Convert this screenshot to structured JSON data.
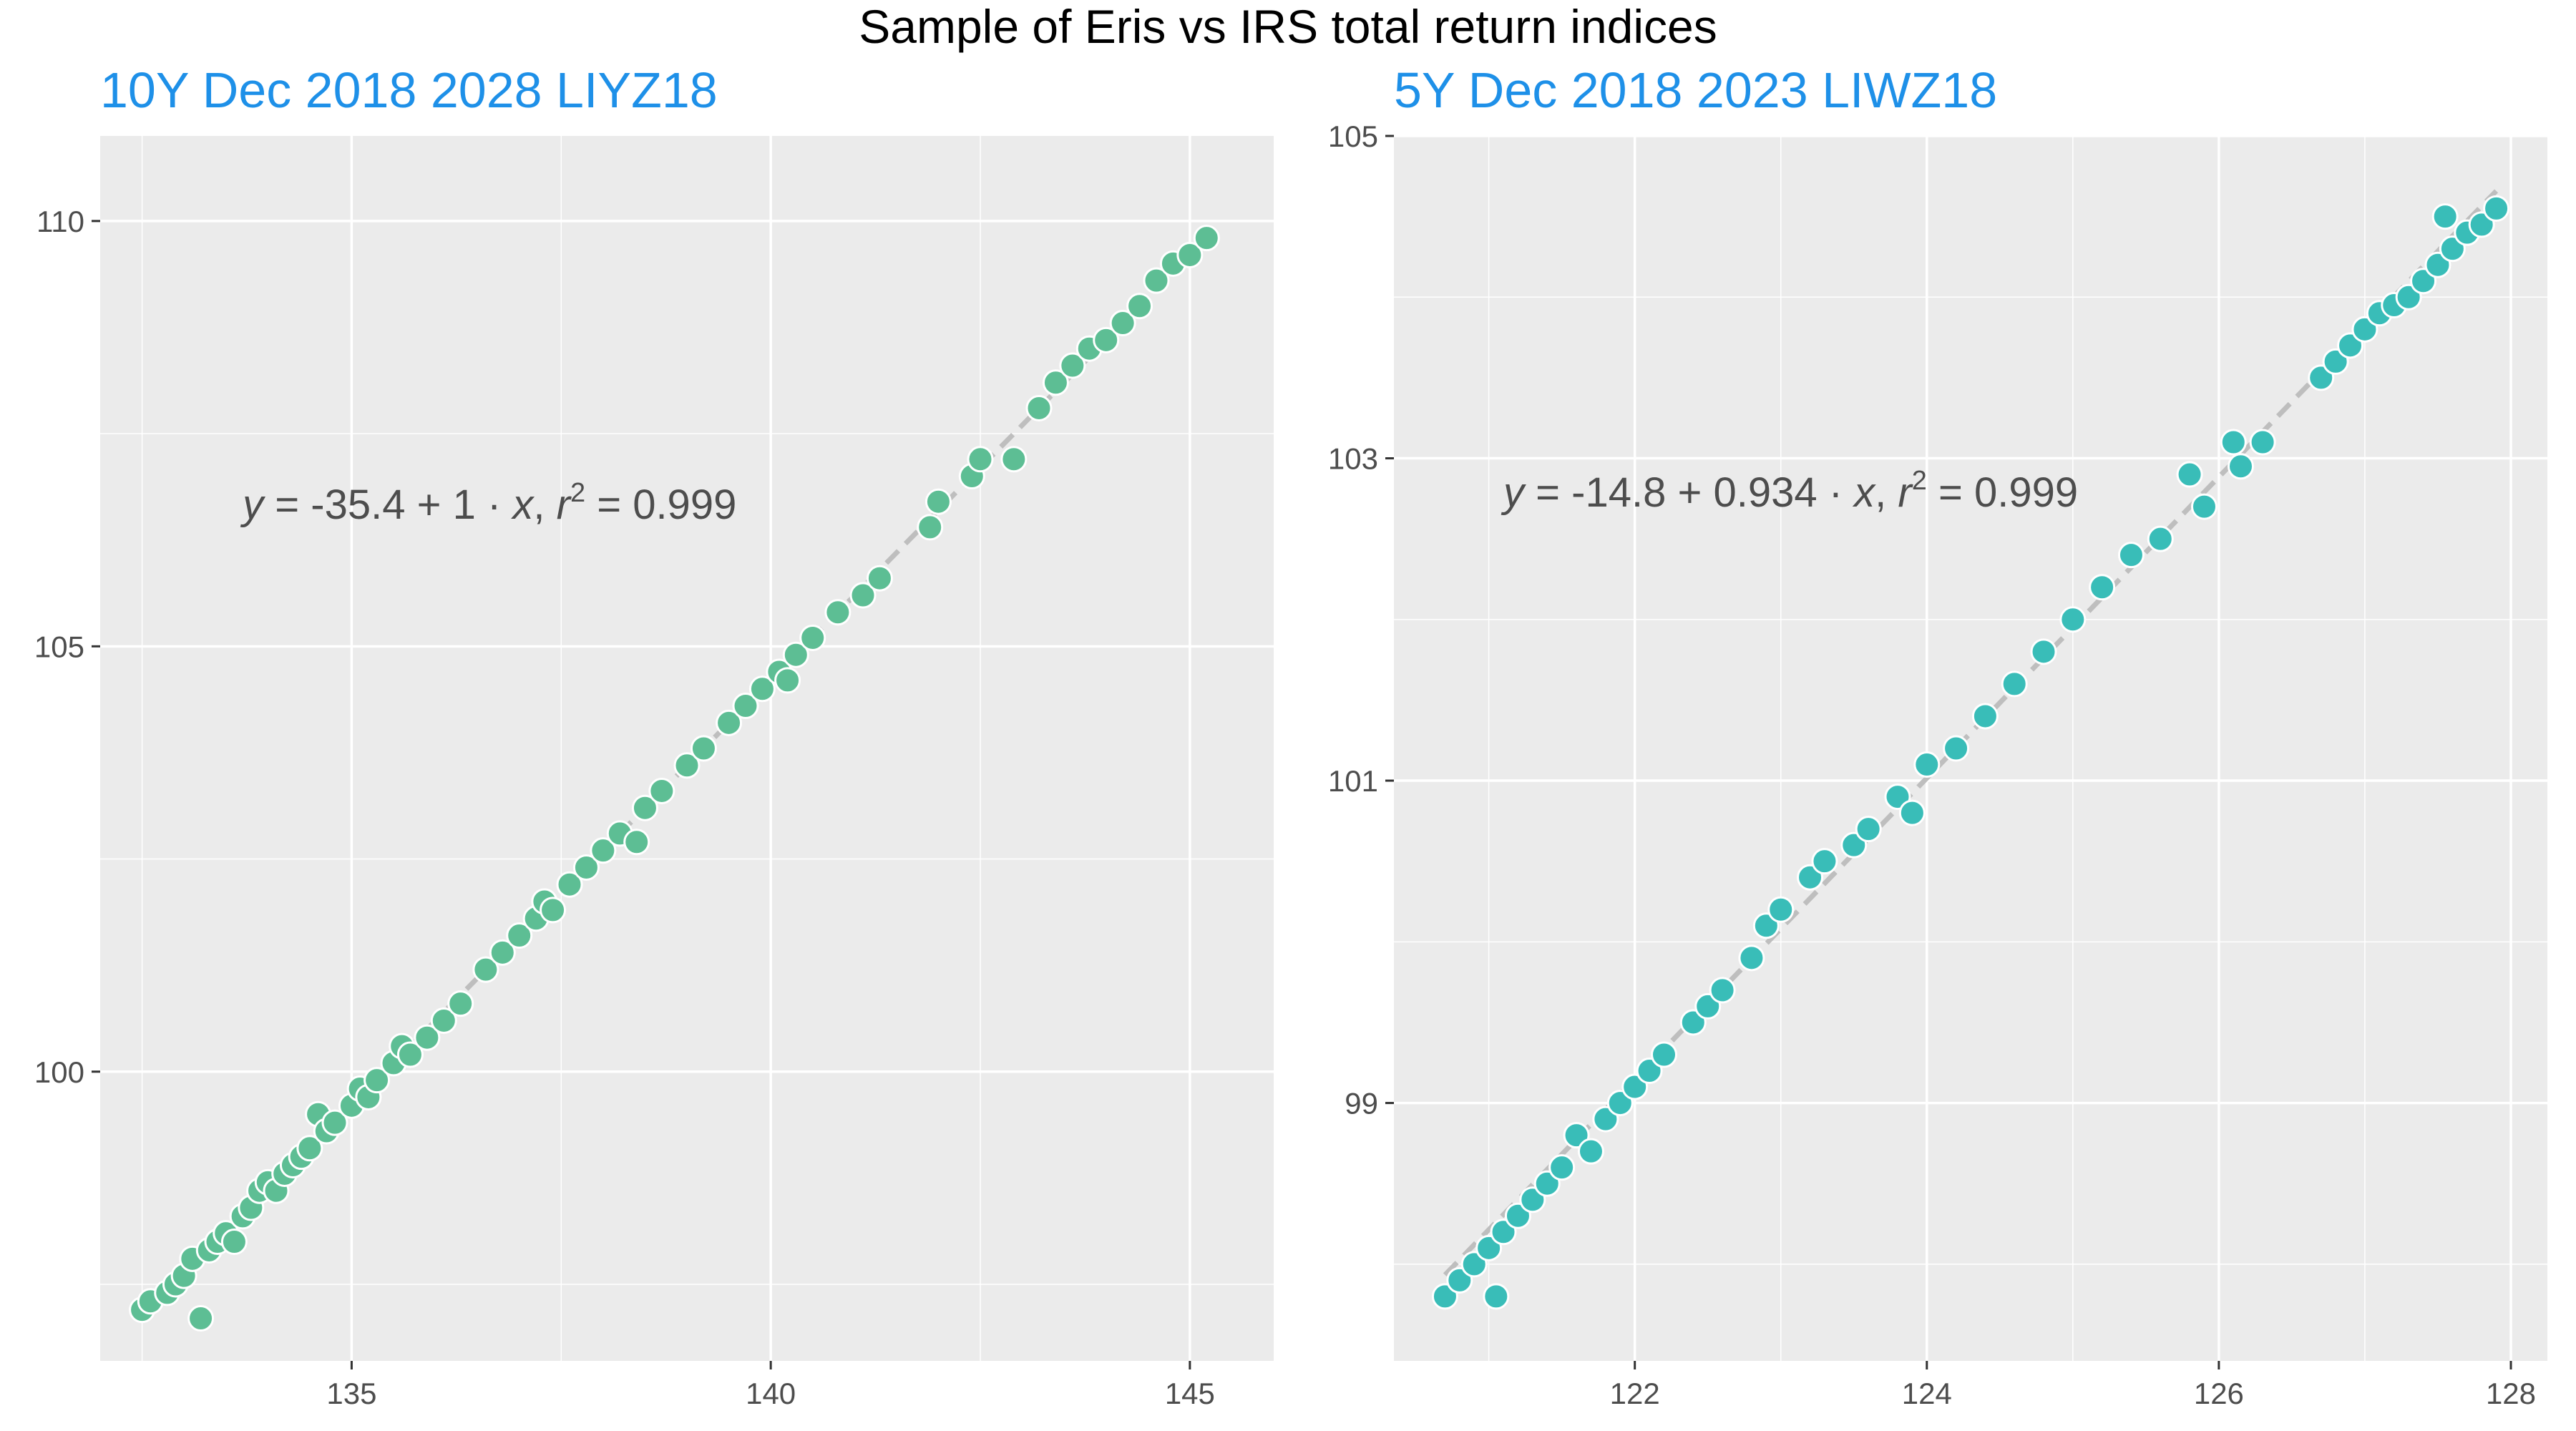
{
  "figure": {
    "title": "Sample of Eris vs IRS total return indices",
    "background": "#ffffff",
    "panel_background": "#EBEBEB",
    "grid_color": "#ffffff",
    "title_color": "#1E90E8",
    "fit_line_color": "#BEBEBE"
  },
  "chart_data": [
    {
      "type": "scatter",
      "title": "10Y Dec 2018 2028 LIYZ18",
      "xlabel": "",
      "ylabel": "",
      "xlim": [
        132.0,
        146.0
      ],
      "ylim": [
        96.6,
        111.0
      ],
      "x_ticks": [
        135,
        140,
        145
      ],
      "y_ticks": [
        100,
        105,
        110
      ],
      "x_tick_labels": [
        "135",
        "140",
        "145"
      ],
      "y_tick_labels": [
        "100",
        "105",
        "110"
      ],
      "point_color": "#5DBE94",
      "fit": {
        "intercept": -35.4,
        "slope": 1.0,
        "r2": 0.999,
        "x_range": [
          132.5,
          145.2
        ]
      },
      "equation": {
        "y": "y",
        "eq": " = ",
        "intercept": "-35.4",
        "plus": " + ",
        "slope": "1",
        "dot": " · ",
        "x": "x",
        "sep": ",  ",
        "r": "r",
        "exp": "2",
        "r2_eq": " = ",
        "r2": "0.999"
      },
      "equation_anchor": [
        133.7,
        106.5
      ],
      "grid": true,
      "legend": "none",
      "points": [
        [
          132.5,
          97.2
        ],
        [
          132.6,
          97.3
        ],
        [
          132.8,
          97.4
        ],
        [
          132.9,
          97.5
        ],
        [
          133.0,
          97.6
        ],
        [
          133.1,
          97.8
        ],
        [
          133.2,
          97.1
        ],
        [
          133.3,
          97.9
        ],
        [
          133.4,
          98.0
        ],
        [
          133.5,
          98.1
        ],
        [
          133.6,
          98.0
        ],
        [
          133.7,
          98.3
        ],
        [
          133.8,
          98.4
        ],
        [
          133.9,
          98.6
        ],
        [
          134.0,
          98.7
        ],
        [
          134.1,
          98.6
        ],
        [
          134.2,
          98.8
        ],
        [
          134.3,
          98.9
        ],
        [
          134.4,
          99.0
        ],
        [
          134.5,
          99.1
        ],
        [
          134.6,
          99.5
        ],
        [
          134.7,
          99.3
        ],
        [
          134.8,
          99.4
        ],
        [
          135.0,
          99.6
        ],
        [
          135.1,
          99.8
        ],
        [
          135.2,
          99.7
        ],
        [
          135.3,
          99.9
        ],
        [
          135.5,
          100.1
        ],
        [
          135.6,
          100.3
        ],
        [
          135.7,
          100.2
        ],
        [
          135.9,
          100.4
        ],
        [
          136.1,
          100.6
        ],
        [
          136.3,
          100.8
        ],
        [
          136.6,
          101.2
        ],
        [
          136.8,
          101.4
        ],
        [
          137.0,
          101.6
        ],
        [
          137.2,
          101.8
        ],
        [
          137.3,
          102.0
        ],
        [
          137.4,
          101.9
        ],
        [
          137.6,
          102.2
        ],
        [
          137.8,
          102.4
        ],
        [
          138.0,
          102.6
        ],
        [
          138.2,
          102.8
        ],
        [
          138.4,
          102.7
        ],
        [
          138.5,
          103.1
        ],
        [
          138.7,
          103.3
        ],
        [
          139.0,
          103.6
        ],
        [
          139.2,
          103.8
        ],
        [
          139.5,
          104.1
        ],
        [
          139.7,
          104.3
        ],
        [
          139.9,
          104.5
        ],
        [
          140.1,
          104.7
        ],
        [
          140.2,
          104.6
        ],
        [
          140.3,
          104.9
        ],
        [
          140.5,
          105.1
        ],
        [
          140.8,
          105.4
        ],
        [
          141.1,
          105.6
        ],
        [
          141.3,
          105.8
        ],
        [
          141.9,
          106.4
        ],
        [
          142.0,
          106.7
        ],
        [
          142.4,
          107.0
        ],
        [
          142.5,
          107.2
        ],
        [
          142.9,
          107.2
        ],
        [
          143.2,
          107.8
        ],
        [
          143.4,
          108.1
        ],
        [
          143.6,
          108.3
        ],
        [
          143.8,
          108.5
        ],
        [
          144.0,
          108.6
        ],
        [
          144.2,
          108.8
        ],
        [
          144.4,
          109.0
        ],
        [
          144.6,
          109.3
        ],
        [
          144.8,
          109.5
        ],
        [
          145.0,
          109.6
        ],
        [
          145.2,
          109.8
        ]
      ]
    },
    {
      "type": "scatter",
      "title": "5Y Dec 2018 2023 LIWZ18",
      "xlabel": "",
      "ylabel": "",
      "xlim": [
        120.35,
        128.25
      ],
      "ylim": [
        97.4,
        105.0
      ],
      "x_ticks": [
        122,
        124,
        126,
        128
      ],
      "y_ticks": [
        99,
        101,
        103,
        105
      ],
      "x_tick_labels": [
        "122",
        "124",
        "126",
        "128"
      ],
      "y_tick_labels": [
        "99",
        "101",
        "103",
        "105"
      ],
      "point_color": "#39BDB8",
      "fit": {
        "intercept": -14.8,
        "slope": 0.934,
        "r2": 0.999,
        "x_range": [
          120.7,
          127.9
        ]
      },
      "equation": {
        "y": "y",
        "eq": " = ",
        "intercept": "-14.8",
        "plus": " + ",
        "slope": "0.934",
        "dot": " · ",
        "x": "x",
        "sep": ",  ",
        "r": "r",
        "exp": "2",
        "r2_eq": " = ",
        "r2": "0.999"
      },
      "equation_anchor": [
        121.1,
        102.7
      ],
      "grid": true,
      "legend": "none",
      "points": [
        [
          120.7,
          97.8
        ],
        [
          120.8,
          97.9
        ],
        [
          120.9,
          98.0
        ],
        [
          121.0,
          98.1
        ],
        [
          121.05,
          97.8
        ],
        [
          121.1,
          98.2
        ],
        [
          121.2,
          98.3
        ],
        [
          121.3,
          98.4
        ],
        [
          121.4,
          98.5
        ],
        [
          121.5,
          98.6
        ],
        [
          121.6,
          98.8
        ],
        [
          121.7,
          98.7
        ],
        [
          121.8,
          98.9
        ],
        [
          121.9,
          99.0
        ],
        [
          122.0,
          99.1
        ],
        [
          122.1,
          99.2
        ],
        [
          122.2,
          99.3
        ],
        [
          122.4,
          99.5
        ],
        [
          122.5,
          99.6
        ],
        [
          122.6,
          99.7
        ],
        [
          122.8,
          99.9
        ],
        [
          122.9,
          100.1
        ],
        [
          123.0,
          100.2
        ],
        [
          123.2,
          100.4
        ],
        [
          123.3,
          100.5
        ],
        [
          123.5,
          100.6
        ],
        [
          123.6,
          100.7
        ],
        [
          123.8,
          100.9
        ],
        [
          123.9,
          100.8
        ],
        [
          124.0,
          101.1
        ],
        [
          124.2,
          101.2
        ],
        [
          124.4,
          101.4
        ],
        [
          124.6,
          101.6
        ],
        [
          124.8,
          101.8
        ],
        [
          125.0,
          102.0
        ],
        [
          125.2,
          102.2
        ],
        [
          125.4,
          102.4
        ],
        [
          125.6,
          102.5
        ],
        [
          125.8,
          102.9
        ],
        [
          125.9,
          102.7
        ],
        [
          126.1,
          103.1
        ],
        [
          126.15,
          102.95
        ],
        [
          126.3,
          103.1
        ],
        [
          126.7,
          103.5
        ],
        [
          126.8,
          103.6
        ],
        [
          126.9,
          103.7
        ],
        [
          127.0,
          103.8
        ],
        [
          127.1,
          103.9
        ],
        [
          127.2,
          103.95
        ],
        [
          127.3,
          104.0
        ],
        [
          127.4,
          104.1
        ],
        [
          127.5,
          104.2
        ],
        [
          127.55,
          104.5
        ],
        [
          127.6,
          104.3
        ],
        [
          127.7,
          104.4
        ],
        [
          127.8,
          104.45
        ],
        [
          127.9,
          104.55
        ]
      ]
    }
  ]
}
